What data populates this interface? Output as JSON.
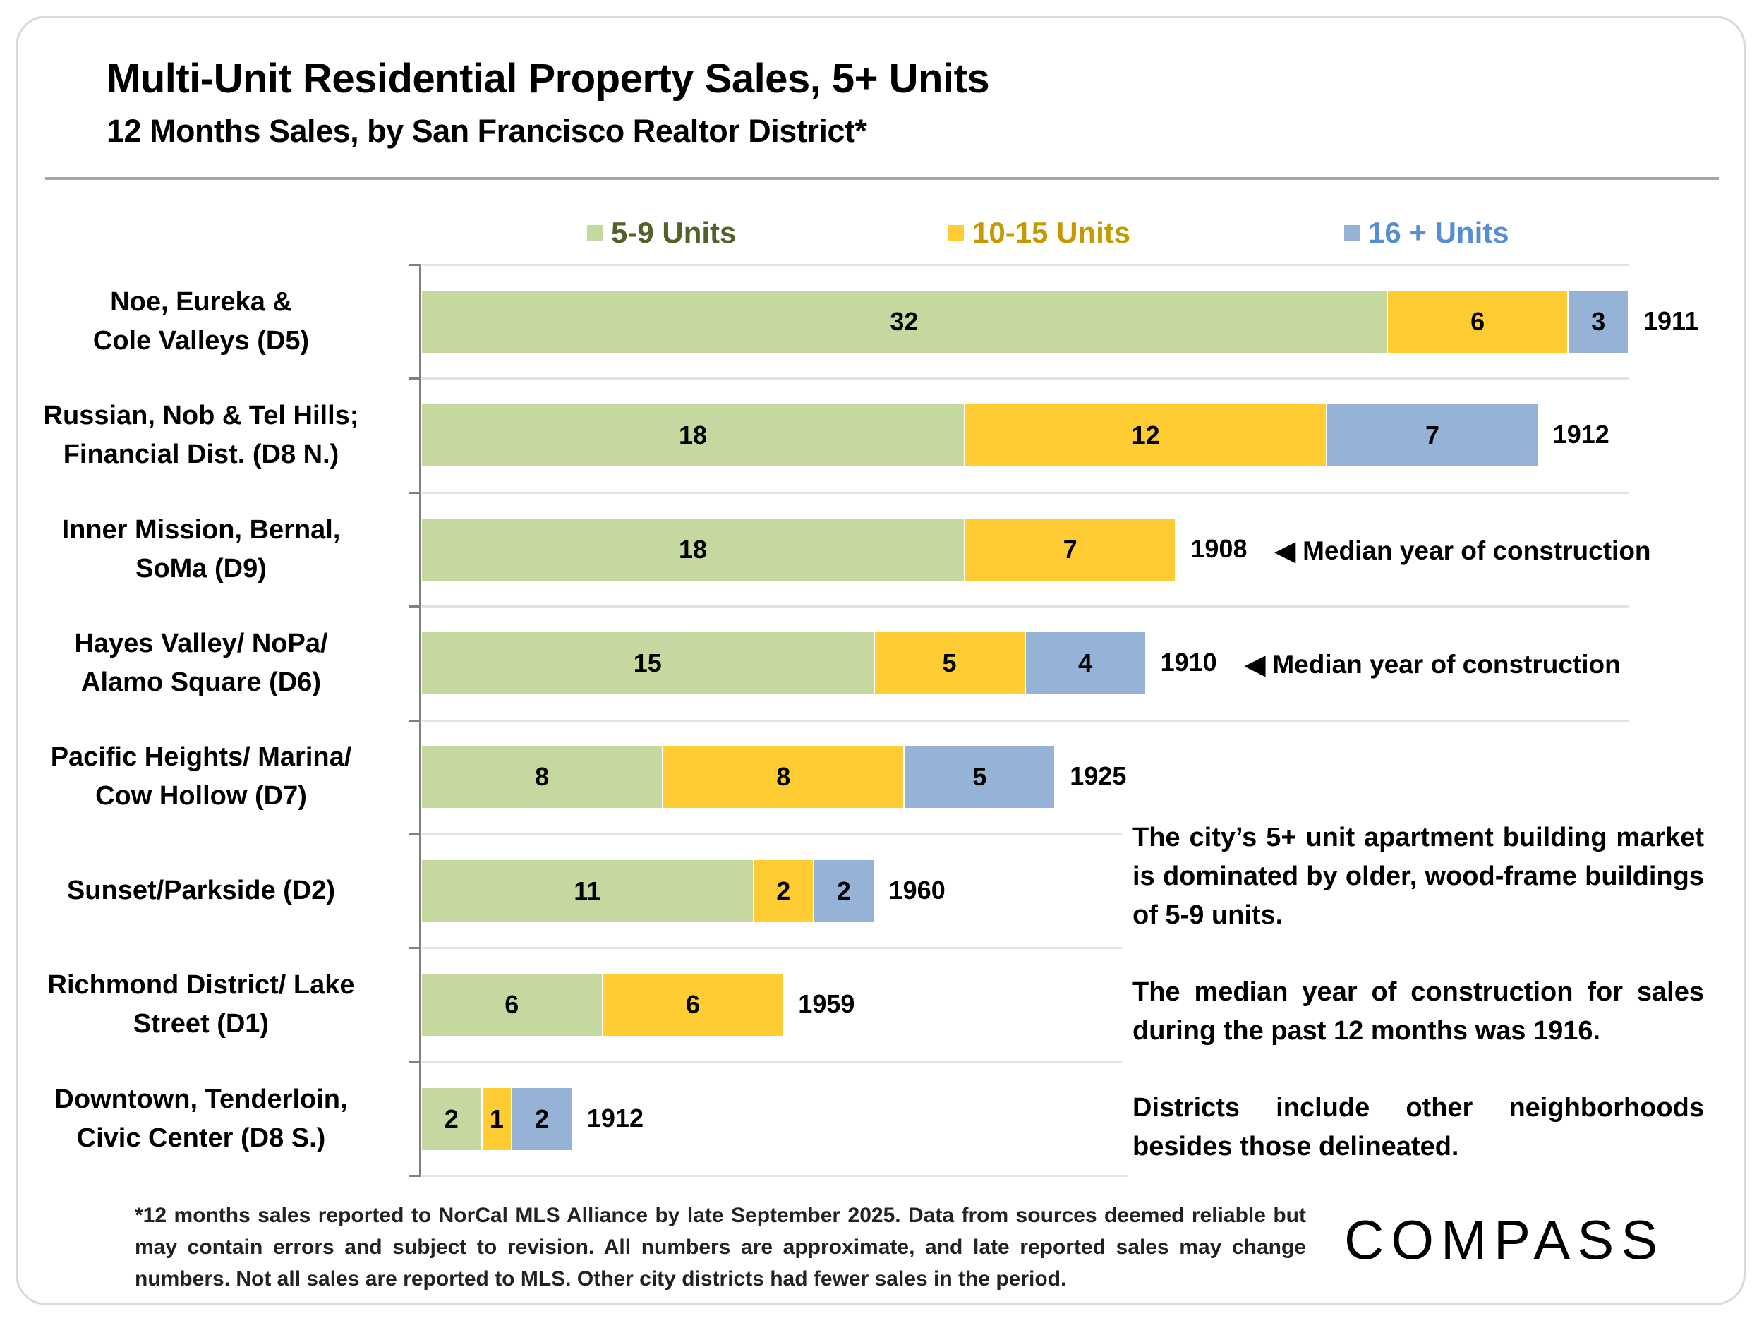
{
  "chart_data": {
    "type": "bar",
    "orientation": "horizontal-stacked",
    "title": "Multi-Unit Residential Property Sales, 5+ Units",
    "subtitle": "12 Months Sales, by San Francisco Realtor District*",
    "xlim": [
      0,
      40
    ],
    "legend_placement": "top",
    "categories": [
      [
        "Noe, Eureka &",
        "Cole Valleys (D5)"
      ],
      [
        "Russian, Nob & Tel Hills;",
        "Financial Dist. (D8 N.)"
      ],
      [
        "Inner Mission, Bernal,",
        "SoMa (D9)"
      ],
      [
        "Hayes Valley/ NoPa/",
        "Alamo Square (D6)"
      ],
      [
        "Pacific Heights/ Marina/",
        "Cow Hollow (D7)"
      ],
      [
        "Sunset/Parkside (D2)"
      ],
      [
        "Richmond District/ Lake",
        "Street (D1)"
      ],
      [
        "Downtown, Tenderloin,",
        "Civic Center (D8 S.)"
      ]
    ],
    "series": [
      {
        "name": "5-9 Units",
        "color": "#c5d89f",
        "text_color": "#4f6228",
        "values": [
          32,
          18,
          18,
          15,
          8,
          11,
          6,
          2
        ]
      },
      {
        "name": "10-15 Units",
        "color": "#ffcc33",
        "text_color": "#c49a00",
        "values": [
          6,
          12,
          7,
          5,
          8,
          2,
          6,
          1
        ]
      },
      {
        "name": "16 + Units",
        "color": "#95b3d7",
        "text_color": "#558ed5",
        "values": [
          3,
          7,
          0,
          4,
          5,
          2,
          0,
          2
        ]
      }
    ],
    "median_year": [
      "1911",
      "1912",
      "1908",
      "1910",
      "1925",
      "1960",
      "1959",
      "1912"
    ],
    "annotations": [
      {
        "row": 2,
        "text": "◀ Median year of construction"
      },
      {
        "row": 3,
        "text": "◀ Median year of construction"
      }
    ]
  },
  "textbox": [
    "The city’s 5+ unit apartment building market is dominated by older, wood-frame buildings of 5-9 units.",
    "The median year of construction for sales during the past 12 months was 1916.",
    "Districts include other neighborhoods besides those delineated."
  ],
  "footnote": "*12 months sales reported to NorCal MLS Alliance by late September 2025. Data from sources deemed reliable but may contain errors and subject to revision. All numbers are approximate, and late reported sales may change numbers. Not all sales are reported to MLS. Other city districts had fewer sales in the period.",
  "logo": "COMPASS"
}
